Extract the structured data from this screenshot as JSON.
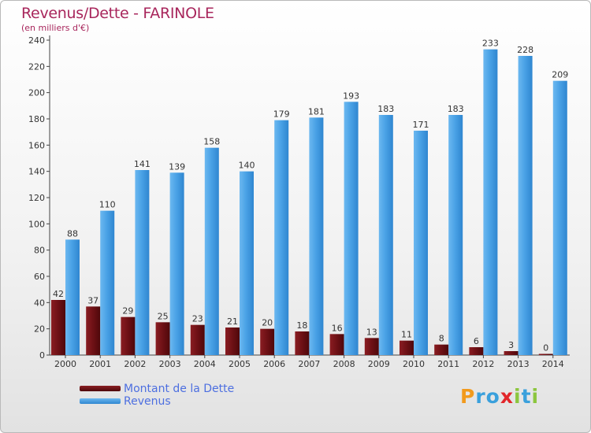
{
  "header": {
    "title": "Revenus/Dette - FARINOLE",
    "subtitle": "(en milliers d'€)"
  },
  "legend": {
    "items": [
      {
        "label": "Montant de la Dette",
        "color": "#6b0f14"
      },
      {
        "label": "Revenus",
        "color": "#3c96de"
      }
    ]
  },
  "logo": {
    "letters": [
      {
        "ch": "P",
        "color": "#f29a1c"
      },
      {
        "ch": "r",
        "color": "#3aa0dc"
      },
      {
        "ch": "o",
        "color": "#3aa0dc"
      },
      {
        "ch": "x",
        "color": "#e2262a"
      },
      {
        "ch": "i",
        "color": "#8cc63e"
      },
      {
        "ch": "t",
        "color": "#3aa0dc"
      },
      {
        "ch": "i",
        "color": "#8cc63e"
      }
    ]
  },
  "chart_data": {
    "type": "bar",
    "title": "Revenus/Dette - FARINOLE",
    "subtitle": "(en milliers d'€)",
    "categories": [
      "2000",
      "2001",
      "2002",
      "2003",
      "2004",
      "2005",
      "2006",
      "2007",
      "2008",
      "2009",
      "2010",
      "2011",
      "2012",
      "2013",
      "2014"
    ],
    "series": [
      {
        "name": "Montant de la Dette",
        "color": "#6b0f14",
        "values": [
          42,
          37,
          29,
          25,
          23,
          21,
          20,
          18,
          16,
          13,
          11,
          8,
          6,
          3,
          0
        ]
      },
      {
        "name": "Revenus",
        "color": "#3c96de",
        "values": [
          88,
          110,
          141,
          139,
          158,
          140,
          179,
          181,
          193,
          183,
          171,
          183,
          233,
          228,
          209
        ]
      }
    ],
    "ylim": [
      0,
      240
    ],
    "yticks": [
      0,
      20,
      40,
      60,
      80,
      100,
      120,
      140,
      160,
      180,
      200,
      220,
      240
    ],
    "grid": false,
    "legend_position": "bottom-left"
  }
}
